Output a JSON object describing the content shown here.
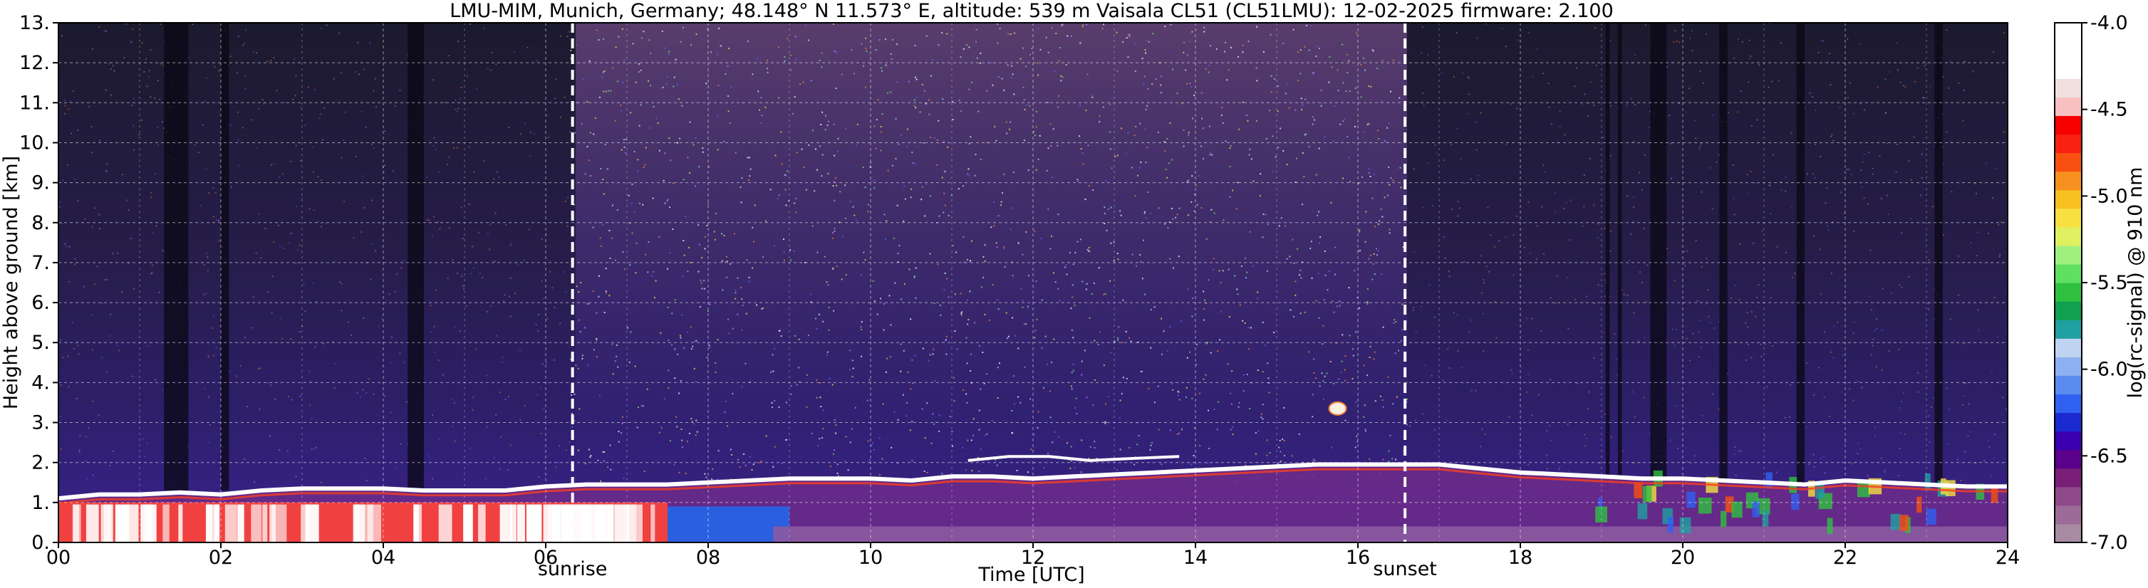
{
  "chart_data": {
    "type": "heatmap",
    "title": "LMU-MIM, Munich, Germany; 48.148° N 11.573° E, altitude: 539 m    Vaisala CL51 (CL51LMU): 12-02-2025    firmware: 2.100",
    "xlabel": "Time [UTC]",
    "ylabel": "Height above ground [km]",
    "xlim": [
      0,
      24
    ],
    "ylim": [
      0,
      13
    ],
    "x_ticks": [
      "00",
      "02",
      "04",
      "06",
      "08",
      "10",
      "12",
      "14",
      "16",
      "18",
      "20",
      "22",
      "24"
    ],
    "y_ticks": [
      "0.",
      "1.",
      "2.",
      "3.",
      "4.",
      "5.",
      "6.",
      "7.",
      "8.",
      "9.",
      "10.",
      "11.",
      "12.",
      "13."
    ],
    "grid": true,
    "colorbar": {
      "label": "log(rc-signal) @ 910 nm",
      "range": [
        -7.0,
        -4.0
      ],
      "tick_labels": [
        "-4.0",
        "-4.5",
        "-5.0",
        "-5.5",
        "-6.0",
        "-6.5",
        "-7.0"
      ],
      "tick_values": [
        -4.0,
        -4.5,
        -5.0,
        -5.5,
        -6.0,
        -6.5,
        -7.0
      ],
      "colors": [
        "#a98aa3",
        "#9d6b97",
        "#8f4a8a",
        "#7a1f78",
        "#5a008a",
        "#3a00b0",
        "#1a2ad0",
        "#2f60f0",
        "#5a8cf0",
        "#8fb0f0",
        "#bfd4f0",
        "#20a0a0",
        "#10a050",
        "#30c040",
        "#60e060",
        "#a0f080",
        "#e0f060",
        "#f8e040",
        "#f8c020",
        "#f89020",
        "#f85010",
        "#f82010",
        "#f80000",
        "#f8c0c0",
        "#f0e0e0",
        "#ffffff",
        "#ffffff",
        "#ffffff"
      ]
    },
    "markers": [
      {
        "label": "sunrise",
        "x": 6.33
      },
      {
        "label": "sunset",
        "x": 16.58
      }
    ],
    "layers": {
      "boundary_layer_top_km": [
        [
          0,
          1.1
        ],
        [
          0.5,
          1.2
        ],
        [
          1,
          1.2
        ],
        [
          1.5,
          1.25
        ],
        [
          2,
          1.2
        ],
        [
          2.5,
          1.3
        ],
        [
          3,
          1.35
        ],
        [
          3.5,
          1.35
        ],
        [
          4,
          1.35
        ],
        [
          4.5,
          1.3
        ],
        [
          5,
          1.3
        ],
        [
          5.5,
          1.3
        ],
        [
          6,
          1.4
        ],
        [
          6.5,
          1.45
        ],
        [
          7,
          1.45
        ],
        [
          7.5,
          1.45
        ],
        [
          8,
          1.5
        ],
        [
          8.5,
          1.55
        ],
        [
          9,
          1.6
        ],
        [
          9.5,
          1.6
        ],
        [
          10,
          1.6
        ],
        [
          10.5,
          1.55
        ],
        [
          11,
          1.65
        ],
        [
          11.5,
          1.65
        ],
        [
          12,
          1.6
        ],
        [
          12.5,
          1.65
        ],
        [
          13,
          1.7
        ],
        [
          13.5,
          1.75
        ],
        [
          14,
          1.8
        ],
        [
          14.5,
          1.85
        ],
        [
          15,
          1.9
        ],
        [
          15.5,
          1.95
        ],
        [
          16,
          1.95
        ],
        [
          16.5,
          1.95
        ],
        [
          17,
          1.95
        ],
        [
          17.5,
          1.85
        ],
        [
          18,
          1.75
        ],
        [
          18.5,
          1.7
        ],
        [
          19,
          1.65
        ],
        [
          19.5,
          1.6
        ],
        [
          20,
          1.6
        ],
        [
          20.5,
          1.55
        ],
        [
          21,
          1.5
        ],
        [
          21.5,
          1.45
        ],
        [
          22,
          1.55
        ],
        [
          22.5,
          1.5
        ],
        [
          23,
          1.45
        ],
        [
          23.5,
          1.4
        ],
        [
          24,
          1.4
        ]
      ],
      "elevated_cloud_km": [
        [
          11.2,
          2.05
        ],
        [
          11.7,
          2.15
        ],
        [
          12.2,
          2.15
        ],
        [
          12.7,
          2.05
        ],
        [
          13.2,
          2.1
        ],
        [
          13.8,
          2.15
        ]
      ],
      "small_cloud": {
        "x": 15.75,
        "y": 3.35
      }
    }
  }
}
